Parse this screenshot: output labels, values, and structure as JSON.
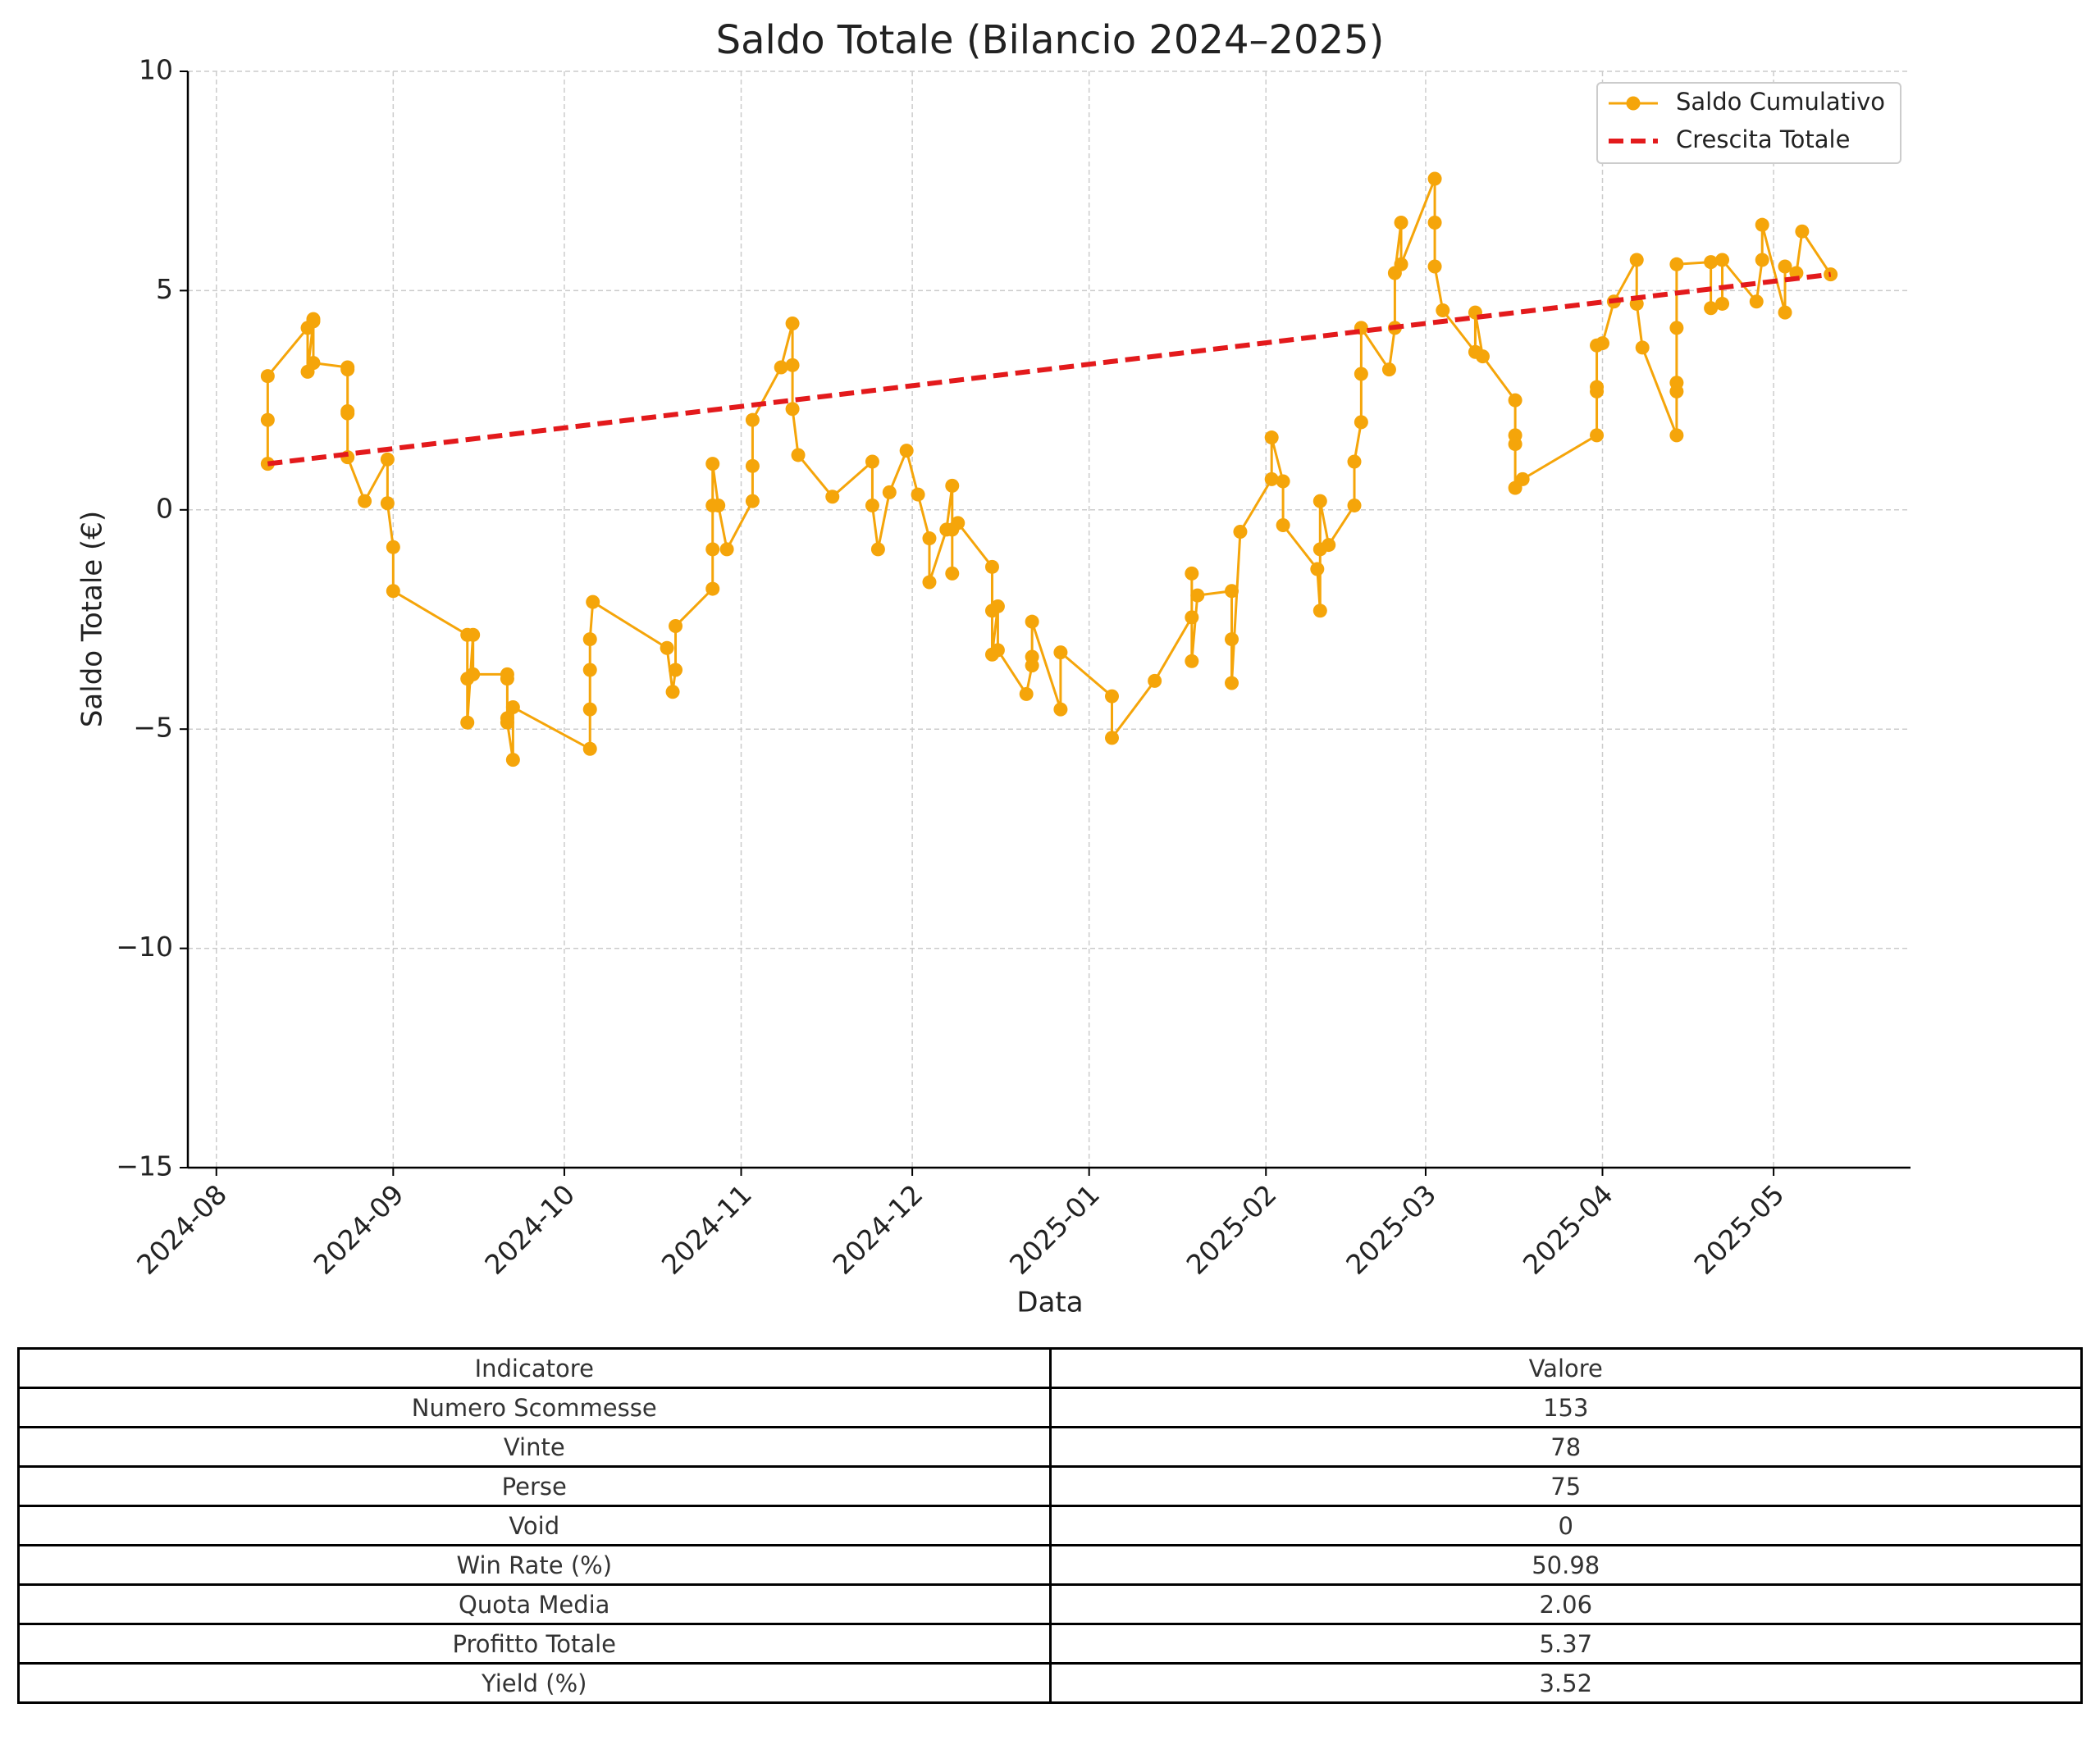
{
  "chart_data": {
    "type": "line",
    "title": "Saldo Totale (Bilancio 2024–2025)",
    "x_label": "Data",
    "y_label": "Saldo Totale (€)",
    "xlim": [
      -5,
      297
    ],
    "xticks": [
      {
        "value": 0,
        "label": "2024-08"
      },
      {
        "value": 31,
        "label": "2024-09"
      },
      {
        "value": 61,
        "label": "2024-10"
      },
      {
        "value": 92,
        "label": "2024-11"
      },
      {
        "value": 122,
        "label": "2024-12"
      },
      {
        "value": 153,
        "label": "2025-01"
      },
      {
        "value": 184,
        "label": "2025-02"
      },
      {
        "value": 212,
        "label": "2025-03"
      },
      {
        "value": 243,
        "label": "2025-04"
      },
      {
        "value": 273,
        "label": "2025-05"
      }
    ],
    "ylim": [
      -15,
      10
    ],
    "yticks": [
      {
        "value": -15,
        "label": "−15"
      },
      {
        "value": -10,
        "label": "−10"
      },
      {
        "value": -5,
        "label": "−5"
      },
      0,
      5,
      10
    ],
    "grid": true,
    "legend": "upper right",
    "series": [
      {
        "name": "Saldo Cumulativo",
        "color": "#f5a50a",
        "marker": true,
        "dashed": false,
        "x": [
          9,
          9,
          9,
          16,
          16,
          17,
          17,
          17,
          23,
          23,
          23,
          23,
          23,
          26,
          30,
          30,
          31,
          31,
          44,
          44,
          44,
          45,
          45,
          51,
          51,
          51,
          51,
          52,
          52,
          65.5,
          65.5,
          65.5,
          65.5,
          66,
          79,
          80,
          80.5,
          80.5,
          87,
          87,
          87,
          87,
          88,
          89.5,
          94,
          94,
          94,
          99,
          101,
          101,
          101,
          102,
          108,
          115,
          115,
          116,
          118,
          121,
          123,
          125,
          125,
          128,
          129,
          129,
          129,
          130,
          136,
          136,
          136,
          137,
          137,
          142,
          143,
          143,
          143,
          148,
          148,
          157,
          157,
          164.5,
          171,
          171,
          171,
          172,
          178,
          178,
          178,
          179.5,
          185,
          185,
          187,
          187,
          193,
          193.5,
          193.5,
          193.5,
          195,
          199.5,
          199.5,
          200.7,
          200.7,
          200.7,
          205.6,
          206.6,
          206.6,
          207.7,
          207.7,
          213.6,
          213.6,
          213.6,
          215,
          220.7,
          220.7,
          222,
          227.7,
          227.7,
          227.7,
          227.7,
          229,
          242,
          242,
          242,
          242,
          243,
          245,
          249,
          249,
          250,
          256,
          256,
          256,
          256,
          256,
          262,
          262,
          264,
          264,
          270,
          271,
          271,
          275,
          275,
          277,
          278,
          283
        ],
        "values": [
          1.05,
          2.05,
          3.05,
          4.15,
          3.15,
          4.3,
          4.35,
          3.35,
          3.25,
          3.2,
          2.25,
          2.2,
          1.2,
          0.2,
          1.15,
          0.15,
          -0.85,
          -1.85,
          -2.85,
          -3.85,
          -4.85,
          -2.85,
          -3.75,
          -3.75,
          -3.85,
          -4.75,
          -4.85,
          -5.7,
          -4.5,
          -5.45,
          -4.55,
          -3.65,
          -2.95,
          -2.1,
          -3.15,
          -4.15,
          -3.65,
          -2.65,
          -1.8,
          -0.9,
          0.1,
          1.05,
          0.1,
          -0.9,
          0.2,
          1.0,
          2.05,
          3.25,
          4.25,
          3.3,
          2.3,
          1.25,
          0.3,
          1.1,
          0.1,
          -0.9,
          0.4,
          1.35,
          0.35,
          -0.65,
          -1.65,
          -0.45,
          0.55,
          -1.45,
          -0.45,
          -0.3,
          -1.3,
          -2.3,
          -3.3,
          -2.2,
          -3.2,
          -4.2,
          -3.55,
          -3.35,
          -2.55,
          -4.55,
          -3.25,
          -4.25,
          -5.2,
          -3.9,
          -2.45,
          -1.45,
          -3.45,
          -1.95,
          -1.85,
          -2.95,
          -3.95,
          -0.5,
          0.7,
          1.65,
          0.65,
          -0.35,
          -1.35,
          -2.3,
          -0.9,
          0.2,
          -0.8,
          0.1,
          1.1,
          2.0,
          3.1,
          4.15,
          3.2,
          4.15,
          5.4,
          6.55,
          5.6,
          7.55,
          6.55,
          5.55,
          4.55,
          3.6,
          4.5,
          3.5,
          2.5,
          1.7,
          1.5,
          0.5,
          0.7,
          1.7,
          2.7,
          2.8,
          3.75,
          3.8,
          4.75,
          5.7,
          4.7,
          3.7,
          1.7,
          2.7,
          2.9,
          4.15,
          5.6,
          5.65,
          4.6,
          4.7,
          5.7,
          4.75,
          5.7,
          6.5,
          4.5,
          5.55,
          5.4,
          6.35,
          5.37
        ]
      },
      {
        "name": "Crescita Totale",
        "color": "#e31a1c",
        "marker": false,
        "dashed": true,
        "x": [
          9,
          283
        ],
        "values": [
          1.05,
          5.37
        ]
      }
    ]
  },
  "table": {
    "header": [
      "Indicatore",
      "Valore"
    ],
    "rows": [
      [
        "Numero Scommesse",
        153
      ],
      [
        "Vinte",
        78
      ],
      [
        "Perse",
        75
      ],
      [
        "Void",
        0
      ],
      [
        "Win Rate (%)",
        50.98
      ],
      [
        "Quota Media",
        2.06
      ],
      [
        "Profitto Totale",
        5.37
      ],
      [
        "Yield (%)",
        3.52
      ]
    ]
  }
}
